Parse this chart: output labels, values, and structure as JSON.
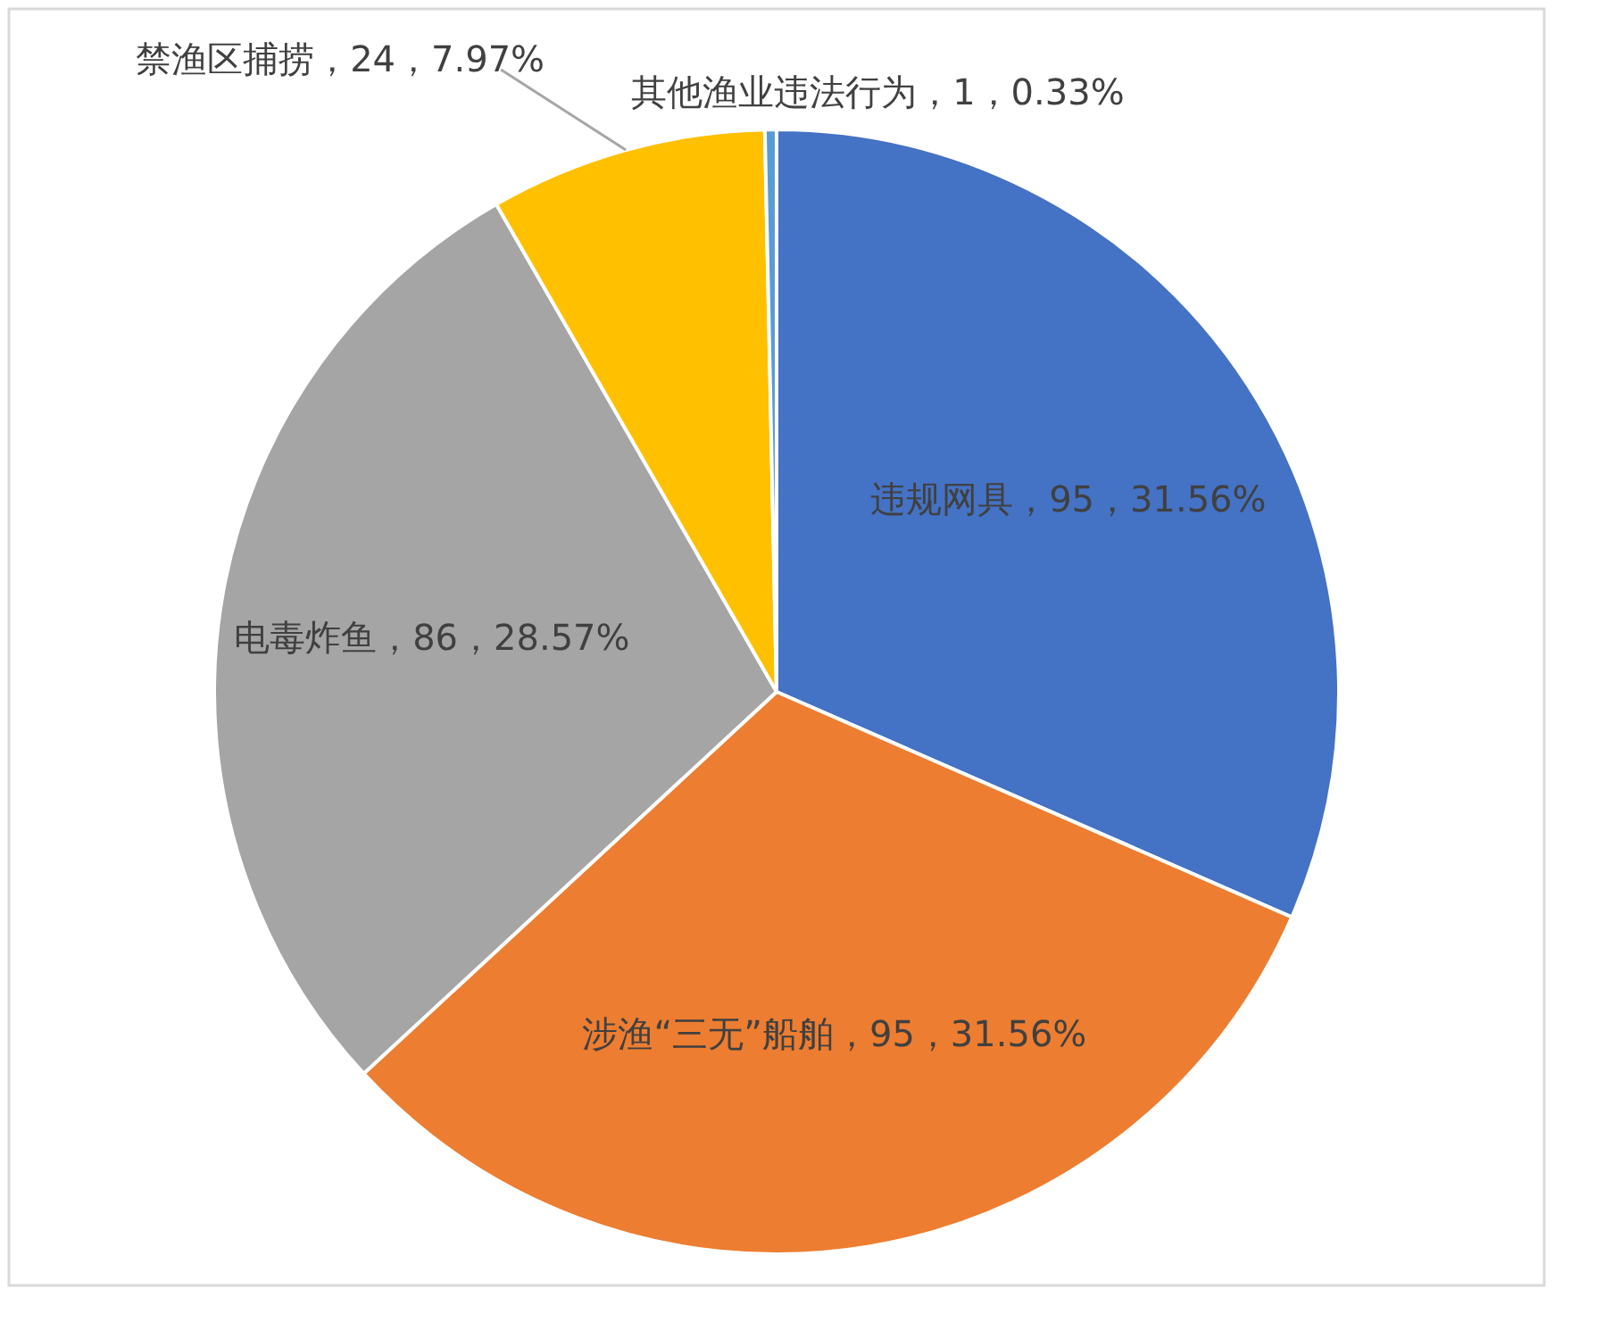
{
  "chart_data": {
    "type": "pie",
    "categories": [
      "违规网具",
      "涉渔“三无”船舶",
      "电毒炸鱼",
      "禁渔区捕捞",
      "其他渔业违法行为"
    ],
    "values": [
      95,
      95,
      86,
      24,
      1
    ],
    "colors": [
      "#4472c4",
      "#ed7d31",
      "#a5a5a5",
      "#ffc000",
      "#5b9bd5"
    ],
    "value_labels": [
      "95，31.56%",
      "95，31.56%",
      "86，28.57%",
      "24，7.97%",
      "1，0.33%"
    ],
    "legend": false
  }
}
